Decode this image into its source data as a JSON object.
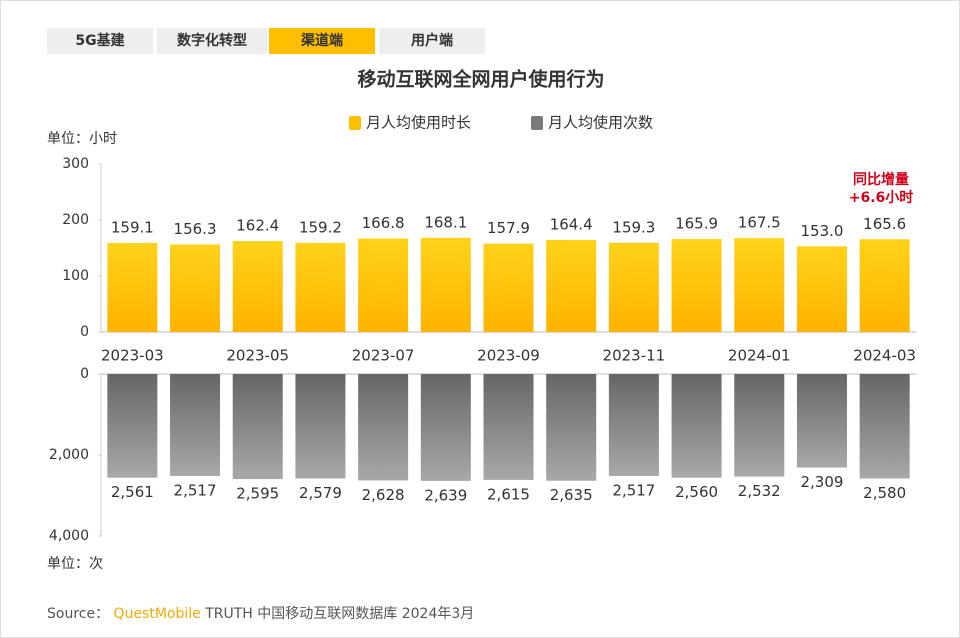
{
  "header": {
    "tabs": [
      "5G基建",
      "数字化转型",
      "渠道端",
      "用户端"
    ],
    "active_tab": 2
  },
  "chart_data": [
    {
      "type": "bar",
      "title": "移动互联网全网用户使用行为",
      "y_label": "单位：小时",
      "categories": [
        "2023-03",
        null,
        "2023-05",
        null,
        "2023-07",
        null,
        "2023-09",
        null,
        "2023-11",
        null,
        "2024-01",
        null,
        "2024-03"
      ],
      "series": [
        {
          "name": "月人均使用时长",
          "color": "#ffc000",
          "values": [
            159.1,
            156.3,
            162.4,
            159.2,
            166.8,
            168.1,
            157.9,
            164.4,
            159.3,
            165.9,
            167.5,
            153.0,
            165.6
          ],
          "value_labels": [
            "159.1",
            "156.3",
            "162.4",
            "159.2",
            "166.8",
            "168.1",
            "157.9",
            "164.4",
            "159.3",
            "165.9",
            "167.5",
            "153.0",
            "165.6"
          ]
        }
      ],
      "ylim": [
        0,
        300
      ],
      "yticks": [
        0,
        100,
        200,
        300
      ],
      "annotation": [
        "同比增量",
        "+6.6小时"
      ]
    },
    {
      "type": "bar",
      "y_label": "单位：次",
      "inverted": true,
      "series": [
        {
          "name": "月人均使用次数",
          "color": "#7a7a7a",
          "values": [
            2561,
            2517,
            2595,
            2579,
            2628,
            2639,
            2615,
            2635,
            2517,
            2560,
            2532,
            2309,
            2580
          ],
          "value_labels": [
            "2,561",
            "2,517",
            "2,595",
            "2,579",
            "2,628",
            "2,639",
            "2,615",
            "2,635",
            "2,517",
            "2,560",
            "2,532",
            "2,309",
            "2,580"
          ]
        }
      ],
      "ylim": [
        0,
        4000
      ],
      "yticks": [
        0,
        {
          "value": 2000,
          "label": "2,000"
        },
        {
          "value": 4000,
          "label": "4,000"
        }
      ]
    }
  ],
  "footer": {
    "source": "Source：",
    "brand": "QuestMobile",
    "text": "TRUTH 中国移动互联网数据库 2024年3月"
  }
}
